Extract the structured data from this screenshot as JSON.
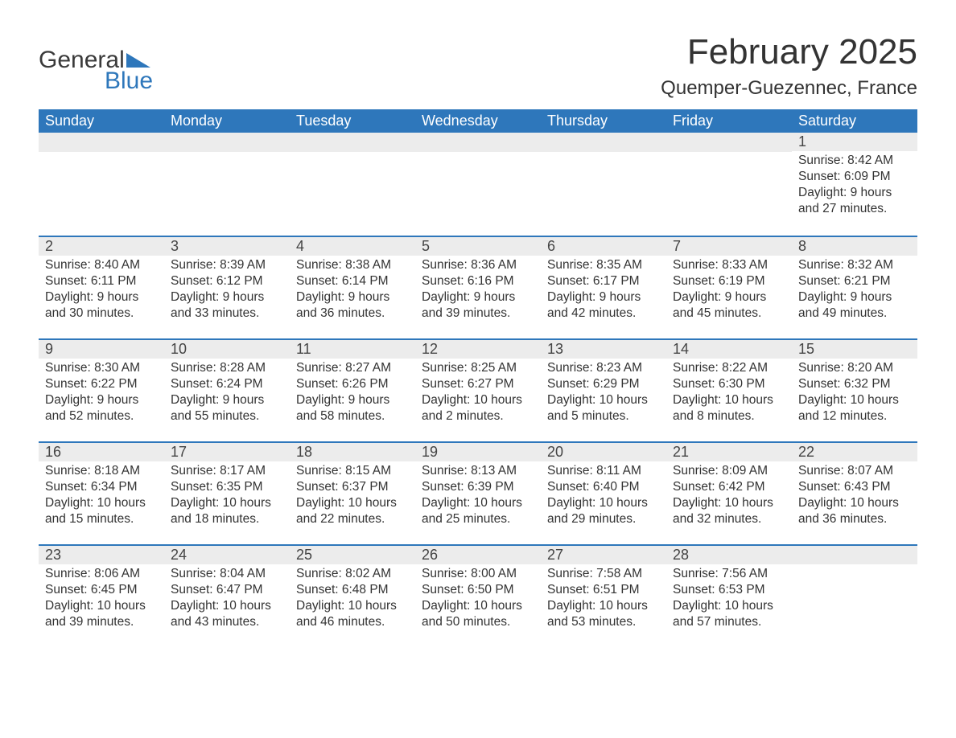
{
  "logo": {
    "line1": "General",
    "line2": "Blue",
    "brand_color": "#2e77bb"
  },
  "title": "February 2025",
  "location": "Quemper-Guezennec, France",
  "colors": {
    "header_bg": "#2e77bb",
    "header_text": "#ffffff",
    "daynum_bg": "#ececec",
    "row_border": "#2e77bb",
    "body_text": "#333333",
    "page_bg": "#ffffff"
  },
  "weekdays": [
    "Sunday",
    "Monday",
    "Tuesday",
    "Wednesday",
    "Thursday",
    "Friday",
    "Saturday"
  ],
  "start_day_index": 6,
  "days": [
    {
      "n": 1,
      "sunrise": "8:42 AM",
      "sunset": "6:09 PM",
      "daylight": "9 hours and 27 minutes."
    },
    {
      "n": 2,
      "sunrise": "8:40 AM",
      "sunset": "6:11 PM",
      "daylight": "9 hours and 30 minutes."
    },
    {
      "n": 3,
      "sunrise": "8:39 AM",
      "sunset": "6:12 PM",
      "daylight": "9 hours and 33 minutes."
    },
    {
      "n": 4,
      "sunrise": "8:38 AM",
      "sunset": "6:14 PM",
      "daylight": "9 hours and 36 minutes."
    },
    {
      "n": 5,
      "sunrise": "8:36 AM",
      "sunset": "6:16 PM",
      "daylight": "9 hours and 39 minutes."
    },
    {
      "n": 6,
      "sunrise": "8:35 AM",
      "sunset": "6:17 PM",
      "daylight": "9 hours and 42 minutes."
    },
    {
      "n": 7,
      "sunrise": "8:33 AM",
      "sunset": "6:19 PM",
      "daylight": "9 hours and 45 minutes."
    },
    {
      "n": 8,
      "sunrise": "8:32 AM",
      "sunset": "6:21 PM",
      "daylight": "9 hours and 49 minutes."
    },
    {
      "n": 9,
      "sunrise": "8:30 AM",
      "sunset": "6:22 PM",
      "daylight": "9 hours and 52 minutes."
    },
    {
      "n": 10,
      "sunrise": "8:28 AM",
      "sunset": "6:24 PM",
      "daylight": "9 hours and 55 minutes."
    },
    {
      "n": 11,
      "sunrise": "8:27 AM",
      "sunset": "6:26 PM",
      "daylight": "9 hours and 58 minutes."
    },
    {
      "n": 12,
      "sunrise": "8:25 AM",
      "sunset": "6:27 PM",
      "daylight": "10 hours and 2 minutes."
    },
    {
      "n": 13,
      "sunrise": "8:23 AM",
      "sunset": "6:29 PM",
      "daylight": "10 hours and 5 minutes."
    },
    {
      "n": 14,
      "sunrise": "8:22 AM",
      "sunset": "6:30 PM",
      "daylight": "10 hours and 8 minutes."
    },
    {
      "n": 15,
      "sunrise": "8:20 AM",
      "sunset": "6:32 PM",
      "daylight": "10 hours and 12 minutes."
    },
    {
      "n": 16,
      "sunrise": "8:18 AM",
      "sunset": "6:34 PM",
      "daylight": "10 hours and 15 minutes."
    },
    {
      "n": 17,
      "sunrise": "8:17 AM",
      "sunset": "6:35 PM",
      "daylight": "10 hours and 18 minutes."
    },
    {
      "n": 18,
      "sunrise": "8:15 AM",
      "sunset": "6:37 PM",
      "daylight": "10 hours and 22 minutes."
    },
    {
      "n": 19,
      "sunrise": "8:13 AM",
      "sunset": "6:39 PM",
      "daylight": "10 hours and 25 minutes."
    },
    {
      "n": 20,
      "sunrise": "8:11 AM",
      "sunset": "6:40 PM",
      "daylight": "10 hours and 29 minutes."
    },
    {
      "n": 21,
      "sunrise": "8:09 AM",
      "sunset": "6:42 PM",
      "daylight": "10 hours and 32 minutes."
    },
    {
      "n": 22,
      "sunrise": "8:07 AM",
      "sunset": "6:43 PM",
      "daylight": "10 hours and 36 minutes."
    },
    {
      "n": 23,
      "sunrise": "8:06 AM",
      "sunset": "6:45 PM",
      "daylight": "10 hours and 39 minutes."
    },
    {
      "n": 24,
      "sunrise": "8:04 AM",
      "sunset": "6:47 PM",
      "daylight": "10 hours and 43 minutes."
    },
    {
      "n": 25,
      "sunrise": "8:02 AM",
      "sunset": "6:48 PM",
      "daylight": "10 hours and 46 minutes."
    },
    {
      "n": 26,
      "sunrise": "8:00 AM",
      "sunset": "6:50 PM",
      "daylight": "10 hours and 50 minutes."
    },
    {
      "n": 27,
      "sunrise": "7:58 AM",
      "sunset": "6:51 PM",
      "daylight": "10 hours and 53 minutes."
    },
    {
      "n": 28,
      "sunrise": "7:56 AM",
      "sunset": "6:53 PM",
      "daylight": "10 hours and 57 minutes."
    }
  ],
  "labels": {
    "sunrise": "Sunrise:",
    "sunset": "Sunset:",
    "daylight": "Daylight:"
  }
}
